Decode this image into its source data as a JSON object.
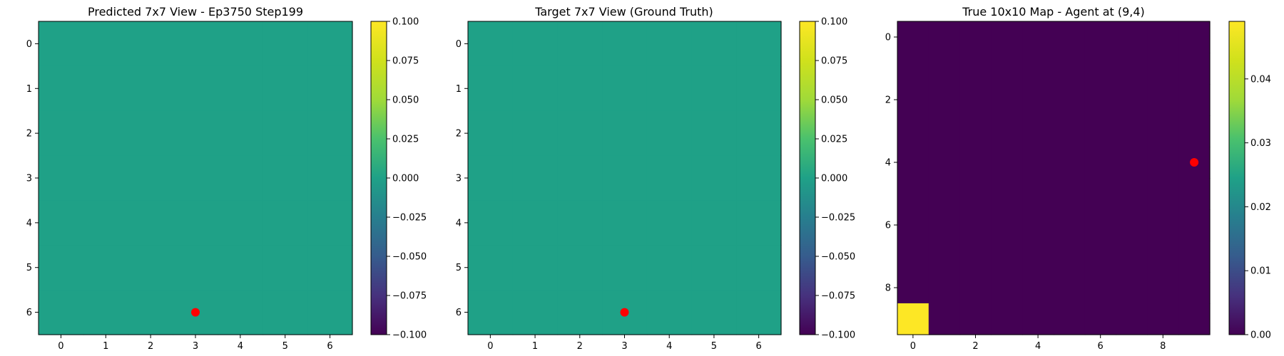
{
  "chart_data": [
    {
      "type": "heatmap",
      "title": "Predicted 7x7 View - Ep3750 Step199",
      "grid_size": [
        7,
        7
      ],
      "values": [
        [
          0,
          0,
          0,
          0,
          0,
          0,
          0
        ],
        [
          0,
          0,
          0,
          0,
          0,
          0,
          0
        ],
        [
          0,
          0,
          0,
          0,
          0,
          0,
          0
        ],
        [
          0,
          0,
          0,
          0,
          0,
          0,
          0
        ],
        [
          0,
          0,
          0,
          0,
          0,
          0,
          0
        ],
        [
          0,
          0,
          0,
          0,
          0,
          0,
          0
        ],
        [
          0,
          0,
          0,
          0,
          0,
          0,
          0
        ]
      ],
      "x_ticks": [
        "0",
        "1",
        "2",
        "3",
        "4",
        "5",
        "6"
      ],
      "y_ticks": [
        "0",
        "1",
        "2",
        "3",
        "4",
        "5",
        "6"
      ],
      "xlabel": "",
      "ylabel": "",
      "marker": {
        "x": 3,
        "y": 6,
        "color": "#ff0000"
      },
      "colorbar": {
        "range": [
          -0.1,
          0.1
        ],
        "ticks": [
          "0.100",
          "0.075",
          "0.050",
          "0.025",
          "0.000",
          "−0.025",
          "−0.050",
          "−0.075",
          "−0.100"
        ],
        "tick_values": [
          0.1,
          0.075,
          0.05,
          0.025,
          0,
          -0.025,
          -0.05,
          -0.075,
          -0.1
        ],
        "colormap": "viridis"
      }
    },
    {
      "type": "heatmap",
      "title": "Target 7x7 View (Ground Truth)",
      "grid_size": [
        7,
        7
      ],
      "values": [
        [
          0,
          0,
          0,
          0,
          0,
          0,
          0
        ],
        [
          0,
          0,
          0,
          0,
          0,
          0,
          0
        ],
        [
          0,
          0,
          0,
          0,
          0,
          0,
          0
        ],
        [
          0,
          0,
          0,
          0,
          0,
          0,
          0
        ],
        [
          0,
          0,
          0,
          0,
          0,
          0,
          0
        ],
        [
          0,
          0,
          0,
          0,
          0,
          0,
          0
        ],
        [
          0,
          0,
          0,
          0,
          0,
          0,
          0
        ]
      ],
      "x_ticks": [
        "0",
        "1",
        "2",
        "3",
        "4",
        "5",
        "6"
      ],
      "y_ticks": [
        "0",
        "1",
        "2",
        "3",
        "4",
        "5",
        "6"
      ],
      "xlabel": "",
      "ylabel": "",
      "marker": {
        "x": 3,
        "y": 6,
        "color": "#ff0000"
      },
      "colorbar": {
        "range": [
          -0.1,
          0.1
        ],
        "ticks": [
          "0.100",
          "0.075",
          "0.050",
          "0.025",
          "0.000",
          "−0.025",
          "−0.050",
          "−0.075",
          "−0.100"
        ],
        "tick_values": [
          0.1,
          0.075,
          0.05,
          0.025,
          0,
          -0.025,
          -0.05,
          -0.075,
          -0.1
        ],
        "colormap": "viridis"
      }
    },
    {
      "type": "heatmap",
      "title": "True 10x10 Map - Agent at (9,4)",
      "grid_size": [
        10,
        10
      ],
      "values": [
        [
          0,
          0,
          0,
          0,
          0,
          0,
          0,
          0,
          0,
          0
        ],
        [
          0,
          0,
          0,
          0,
          0,
          0,
          0,
          0,
          0,
          0
        ],
        [
          0,
          0,
          0,
          0,
          0,
          0,
          0,
          0,
          0,
          0
        ],
        [
          0,
          0,
          0,
          0,
          0,
          0,
          0,
          0,
          0,
          0
        ],
        [
          0,
          0,
          0,
          0,
          0,
          0,
          0,
          0,
          0,
          0
        ],
        [
          0,
          0,
          0,
          0,
          0,
          0,
          0,
          0,
          0,
          0
        ],
        [
          0,
          0,
          0,
          0,
          0,
          0,
          0,
          0,
          0,
          0
        ],
        [
          0,
          0,
          0,
          0,
          0,
          0,
          0,
          0,
          0,
          0
        ],
        [
          0,
          0,
          0,
          0,
          0,
          0,
          0,
          0,
          0,
          0
        ],
        [
          0.049,
          0,
          0,
          0,
          0,
          0,
          0,
          0,
          0,
          0
        ]
      ],
      "x_ticks": [
        "0",
        "2",
        "4",
        "6",
        "8"
      ],
      "x_tick_values": [
        0,
        2,
        4,
        6,
        8
      ],
      "y_ticks": [
        "0",
        "2",
        "4",
        "6",
        "8"
      ],
      "y_tick_values": [
        0,
        2,
        4,
        6,
        8
      ],
      "xlabel": "",
      "ylabel": "",
      "marker": {
        "x": 9,
        "y": 4,
        "color": "#ff0000"
      },
      "colorbar": {
        "range": [
          0,
          0.049
        ],
        "ticks": [
          "0.04",
          "0.03",
          "0.02",
          "0.01",
          "0.00"
        ],
        "tick_values": [
          0.04,
          0.03,
          0.02,
          0.01,
          0
        ],
        "colormap": "viridis"
      }
    }
  ]
}
